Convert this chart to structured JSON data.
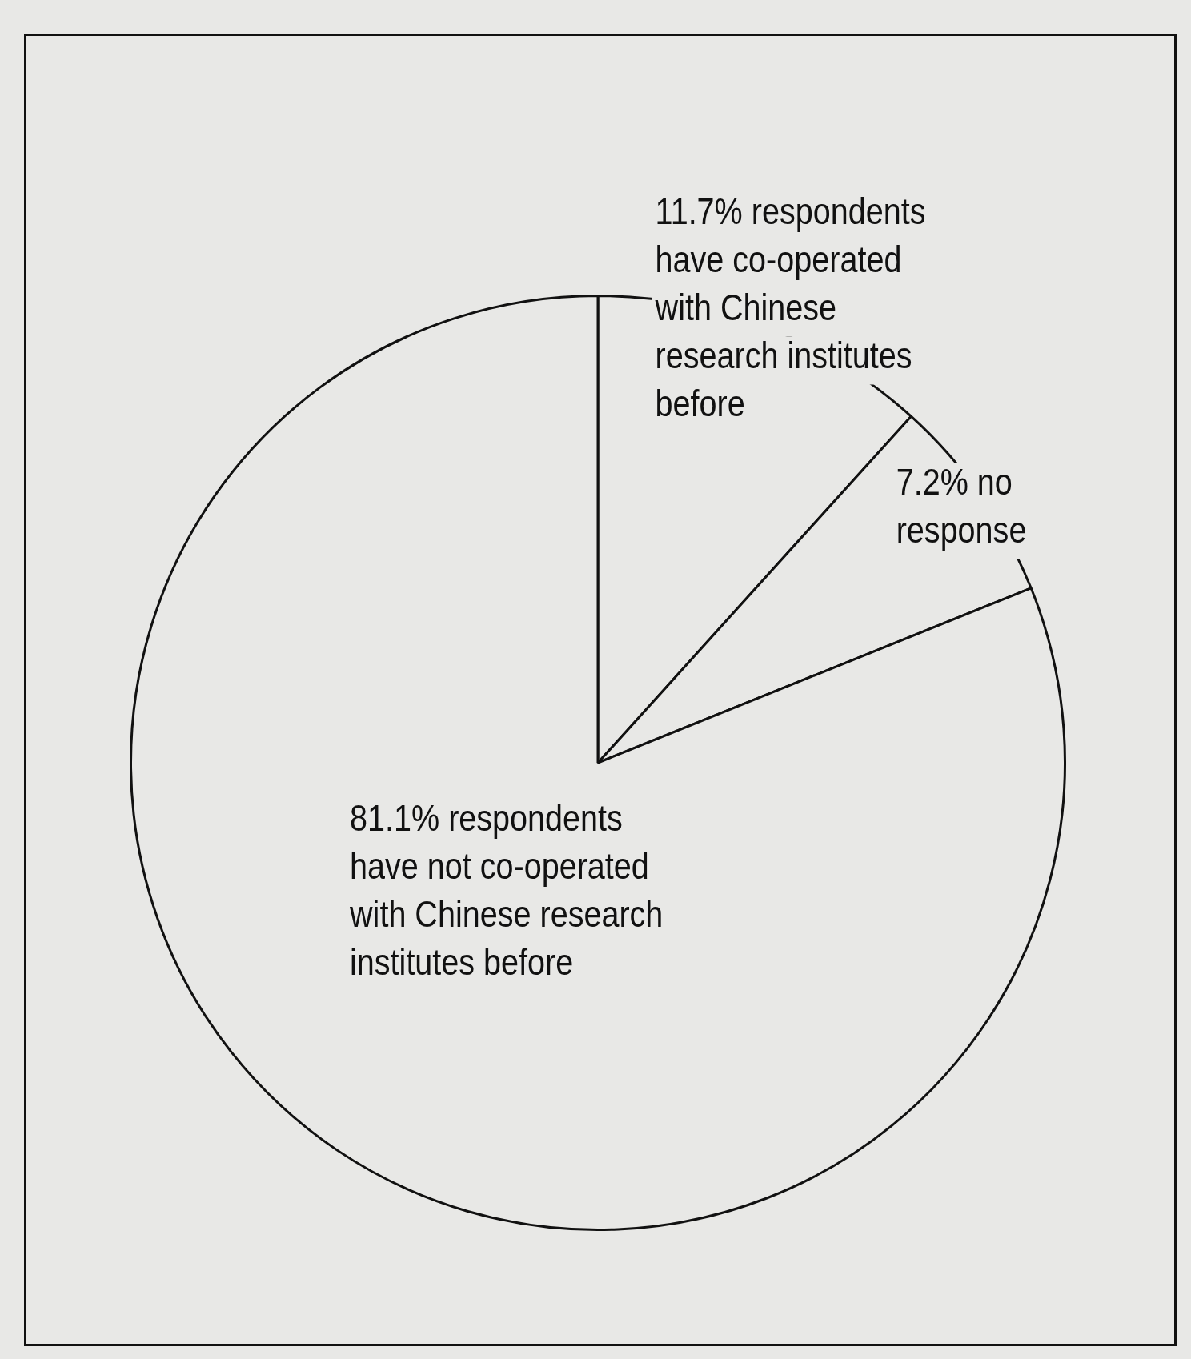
{
  "chart_data": {
    "type": "pie",
    "categories": [
      "11.7% respondents have co-operated with Chinese research institutes before",
      "7.2% no response",
      "81.1% respondents have not co-operated with Chinese research institutes before"
    ],
    "values": [
      11.7,
      7.2,
      81.1
    ],
    "colors": [
      "#e8e8e6",
      "#e8e8e6",
      "#e8e8e6"
    ],
    "legend": false
  }
}
